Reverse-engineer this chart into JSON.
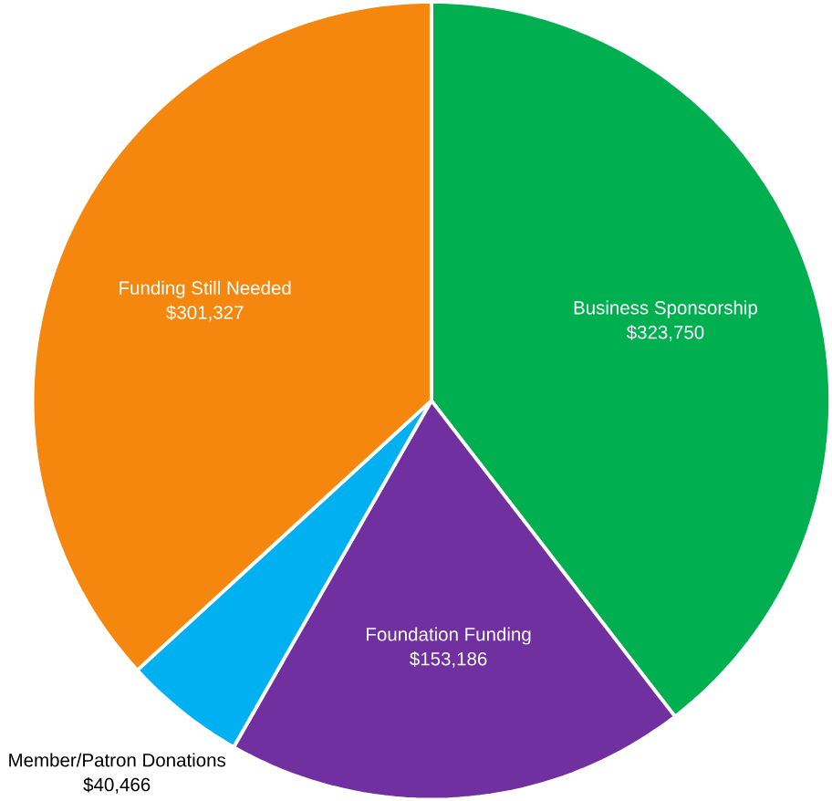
{
  "chart_data": {
    "type": "pie",
    "categories": [
      "Business Sponsorship",
      "Foundation Funding",
      "Member/Patron Donations",
      "Funding Still Needed"
    ],
    "values": [
      323750,
      153186,
      40466,
      301327
    ],
    "value_labels": [
      "$323,750",
      "$153,186",
      "$40,466",
      "$301,327"
    ],
    "colors": [
      "#00b050",
      "#7030a0",
      "#00b0f0",
      "#f5870f"
    ]
  }
}
